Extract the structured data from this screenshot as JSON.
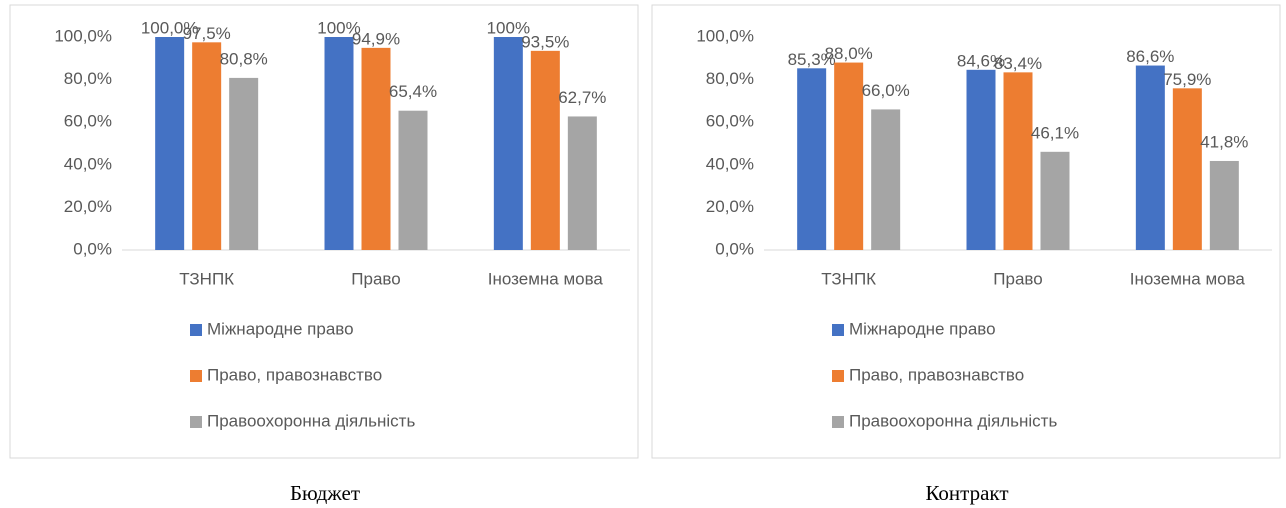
{
  "chart_data": [
    {
      "type": "bar",
      "caption": "Бюджет",
      "categories": [
        "ТЗНПК",
        "Право",
        "Іноземна мова"
      ],
      "series": [
        {
          "name": "Міжнародне право",
          "color": "#4472c4",
          "values": [
            100,
            100,
            100
          ],
          "value_labels": [
            "100,0%",
            "100%",
            "100%"
          ]
        },
        {
          "name": "Право, правознавство",
          "color": "#ed7d31",
          "values": [
            97.5,
            94.9,
            93.5
          ],
          "value_labels": [
            "97,5%",
            "94,9%",
            "93,5%"
          ]
        },
        {
          "name": "Правоохоронна діяльність",
          "color": "#a5a5a5",
          "values": [
            80.8,
            65.4,
            62.7
          ],
          "value_labels": [
            "80,8%",
            "65,4%",
            "62,7%"
          ]
        }
      ],
      "ylim": [
        0,
        100
      ],
      "yticks": [
        {
          "value": 0,
          "label": "0,0%"
        },
        {
          "value": 20,
          "label": "20,0%"
        },
        {
          "value": 40,
          "label": "40,0%"
        },
        {
          "value": 60,
          "label": "60,0%"
        },
        {
          "value": 80,
          "label": "80,0%"
        },
        {
          "value": 100,
          "label": "100,0%"
        }
      ]
    },
    {
      "type": "bar",
      "caption": "Контракт",
      "categories": [
        "ТЗНПК",
        "Право",
        "Іноземна мова"
      ],
      "series": [
        {
          "name": "Міжнародне право",
          "color": "#4472c4",
          "values": [
            85.3,
            84.6,
            86.6
          ],
          "value_labels": [
            "85,3%",
            "84,6%",
            "86,6%"
          ]
        },
        {
          "name": "Право, правознавство",
          "color": "#ed7d31",
          "values": [
            88.0,
            83.4,
            75.9
          ],
          "value_labels": [
            "88,0%",
            "83,4%",
            "75,9%"
          ]
        },
        {
          "name": "Правоохоронна діяльність",
          "color": "#a5a5a5",
          "values": [
            66.0,
            46.1,
            41.8
          ],
          "value_labels": [
            "66,0%",
            "46,1%",
            "41,8%"
          ]
        }
      ],
      "ylim": [
        0,
        100
      ],
      "yticks": [
        {
          "value": 0,
          "label": "0,0%"
        },
        {
          "value": 20,
          "label": "20,0%"
        },
        {
          "value": 40,
          "label": "40,0%"
        },
        {
          "value": 60,
          "label": "60,0%"
        },
        {
          "value": 80,
          "label": "80,0%"
        },
        {
          "value": 100,
          "label": "100,0%"
        }
      ]
    }
  ]
}
